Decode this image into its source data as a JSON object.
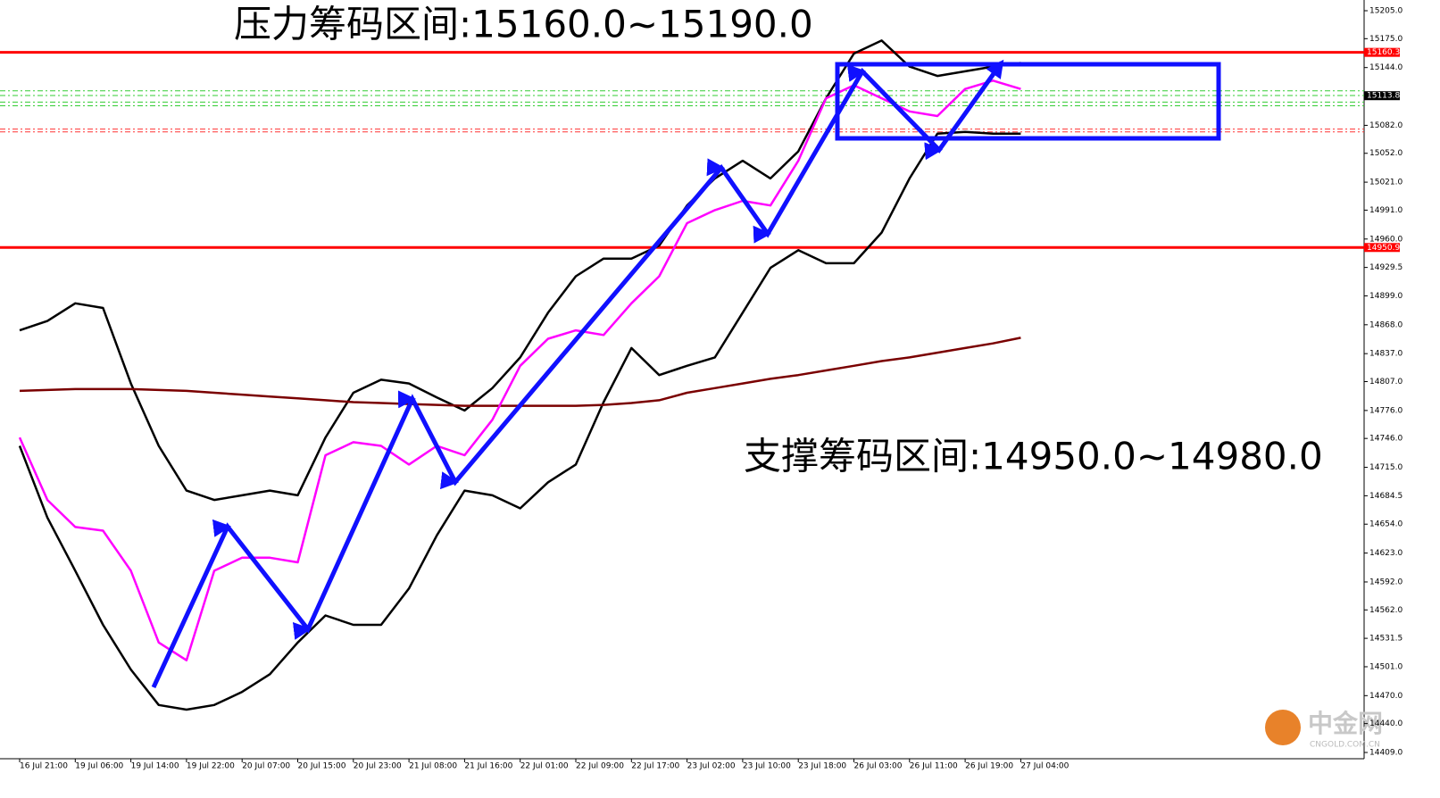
{
  "chart_data": {
    "type": "line",
    "annotations": [
      "压力筹码区间:15160.0~15190.0",
      "支撑筹码区间:14950.0~14980.0"
    ],
    "categories": [
      "16 Jul 21:00",
      null,
      "19 Jul 06:00",
      null,
      "19 Jul 14:00",
      null,
      "19 Jul 22:00",
      null,
      "20 Jul 07:00",
      null,
      "20 Jul 15:00",
      null,
      "20 Jul 23:00",
      null,
      "21 Jul 08:00",
      null,
      "21 Jul 16:00",
      null,
      "22 Jul 01:00",
      null,
      "22 Jul 09:00",
      null,
      "22 Jul 17:00",
      null,
      "23 Jul 02:00",
      null,
      "23 Jul 10:00",
      null,
      "23 Jul 18:00",
      null,
      "26 Jul 03:00",
      null,
      "26 Jul 11:00",
      null,
      "26 Jul 19:00",
      null,
      "27 Jul 04:00"
    ],
    "series": [
      {
        "color": "#000000",
        "values": [
          14862,
          14872,
          14891,
          14886,
          14805,
          14738,
          14690,
          14680,
          14685,
          14690,
          14685,
          14747,
          14795,
          14809,
          14805,
          14790,
          14776,
          14800,
          14833,
          14881,
          14920,
          14939,
          14939,
          14953,
          14996,
          15025,
          15044,
          15025,
          15054,
          15111,
          15159,
          15173,
          15145,
          15135,
          15140,
          15145,
          15149
        ]
      },
      {
        "color": "#000000",
        "values": [
          14738,
          14661,
          14604,
          14546,
          14498,
          14460,
          14455,
          14460,
          14474,
          14493,
          14527,
          14556,
          14546,
          14546,
          14585,
          14642,
          14690,
          14685,
          14671,
          14699,
          14718,
          14785,
          14843,
          14814,
          14824,
          14833,
          14881,
          14929,
          14948,
          14934,
          14934,
          14967,
          15025,
          15073,
          15075,
          15073,
          15073
        ]
      },
      {
        "color": "#7a0000",
        "values": [
          14797,
          14798,
          14799,
          14799,
          14799,
          14798,
          14797,
          14795,
          14793,
          14791,
          14789,
          14787,
          14785,
          14784,
          14783,
          14782,
          14781,
          14781,
          14781,
          14781,
          14781,
          14782,
          14784,
          14787,
          14795,
          14800,
          14805,
          14810,
          14814,
          14819,
          14824,
          14829,
          14833,
          14838,
          14843,
          14848,
          14854
        ]
      },
      {
        "color": "#ff00ff",
        "values": [
          14747,
          14680,
          14651,
          14647,
          14604,
          14527,
          14508,
          14604,
          14618,
          14618,
          14613,
          14728,
          14742,
          14738,
          14718,
          14738,
          14728,
          14766,
          14824,
          14853,
          14862,
          14857,
          14891,
          14920,
          14977,
          14991,
          15001,
          14996,
          15044,
          15111,
          15125,
          15111,
          15097,
          15092,
          15121,
          15130,
          15121
        ]
      }
    ],
    "ylim": [
      14402.3,
      15216.5
    ],
    "yticks": [
      {
        "value": 15205,
        "label": "15205.0"
      },
      {
        "value": 15175,
        "label": "15175.0"
      },
      {
        "value": 15144,
        "label": "15144.0"
      },
      {
        "value": 15082,
        "label": "15082.0"
      },
      {
        "value": 15052,
        "label": "15052.0"
      },
      {
        "value": 15021,
        "label": "15021.0"
      },
      {
        "value": 14991,
        "label": "14991.0"
      },
      {
        "value": 14960,
        "label": "14960.0"
      },
      14929.5,
      {
        "value": 14899,
        "label": "14899.0"
      },
      {
        "value": 14868,
        "label": "14868.0"
      },
      {
        "value": 14837,
        "label": "14837.0"
      },
      {
        "value": 14807,
        "label": "14807.0"
      },
      {
        "value": 14776,
        "label": "14776.0"
      },
      {
        "value": 14746,
        "label": "14746.0"
      },
      {
        "value": 14715,
        "label": "14715.0"
      },
      14684.5,
      {
        "value": 14654,
        "label": "14654.0"
      },
      {
        "value": 14623,
        "label": "14623.0"
      },
      {
        "value": 14592,
        "label": "14592.0"
      },
      {
        "value": 14562,
        "label": "14562.0"
      },
      14531.5,
      {
        "value": 14501,
        "label": "14501.0"
      },
      {
        "value": 14470,
        "label": "14470.0"
      },
      {
        "value": 14440,
        "label": "14440.0"
      },
      {
        "value": 14409,
        "label": "14409.0"
      }
    ],
    "hlines": [
      {
        "value": 15160.3,
        "color": "#ff0000"
      },
      {
        "value": 14950.9,
        "color": "#ff0000"
      }
    ],
    "current_price": 15113.8,
    "dashed_levels": [
      {
        "value": 15119,
        "color": "#33cc33"
      },
      {
        "value": 15114,
        "color": "#33cc33"
      },
      {
        "value": 15107,
        "color": "#33cc33"
      },
      {
        "value": 15103,
        "color": "#33cc33"
      },
      {
        "value": 15078,
        "color": "#ff3333"
      },
      {
        "value": 15075,
        "color": "#ff3333"
      }
    ],
    "watermark": [
      "中金网",
      "CNGOLD.COM.CN"
    ]
  }
}
